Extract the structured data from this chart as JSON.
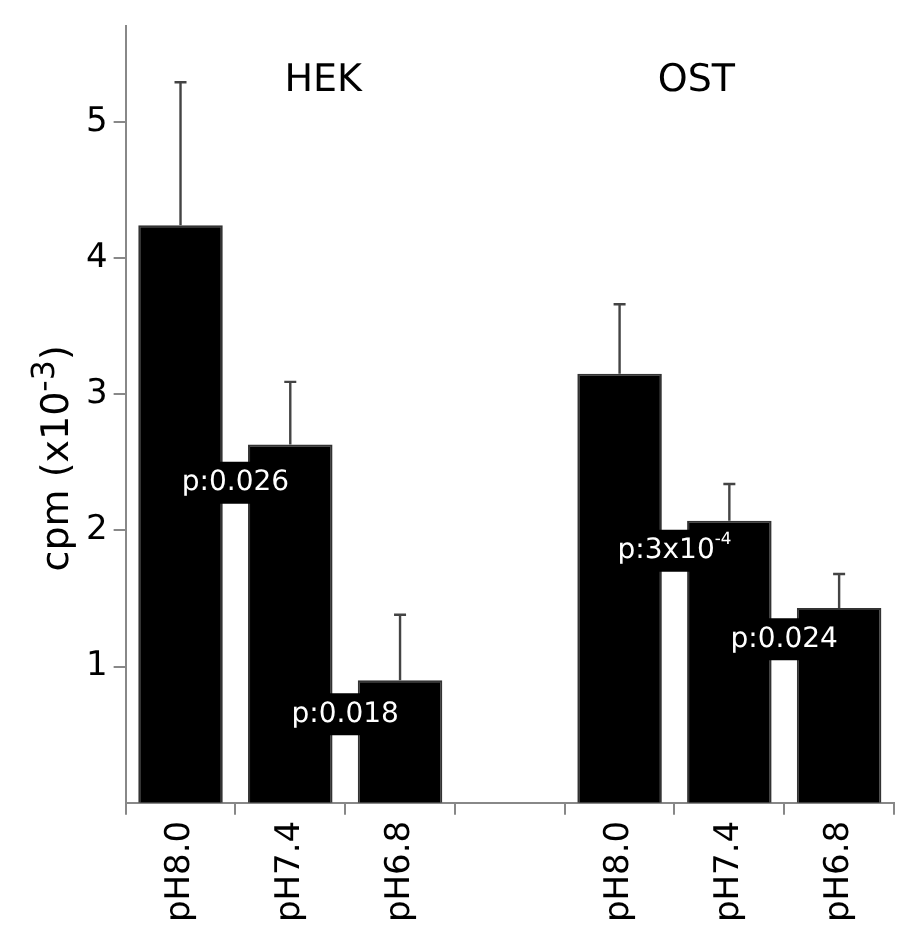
{
  "chart_data": {
    "type": "bar",
    "ylabel": "cpm (x10$^{-3}$)",
    "categories": [
      "pH8.0",
      "pH7.4",
      "pH6.8",
      null,
      "pH8.0",
      "pH7.4",
      "pH6.8"
    ],
    "values": [
      4.24,
      2.63,
      0.9,
      null,
      3.15,
      2.07,
      1.43
    ],
    "errors": [
      [
        4.24,
        5.29
      ],
      [
        2.63,
        3.09
      ],
      [
        0.9,
        1.38
      ],
      null,
      [
        3.15,
        3.66
      ],
      [
        2.07,
        2.34
      ],
      [
        1.43,
        1.68
      ]
    ],
    "color": "#000000",
    "ylim": [
      0,
      5.7
    ],
    "yticks": [
      1,
      2,
      3,
      4,
      5
    ],
    "grid": false,
    "legend": false,
    "annotations": [
      "HEK",
      "OST",
      "p:0.026",
      "p:0.018",
      "p:3x10$^{-4}$",
      "p:0.024"
    ]
  }
}
